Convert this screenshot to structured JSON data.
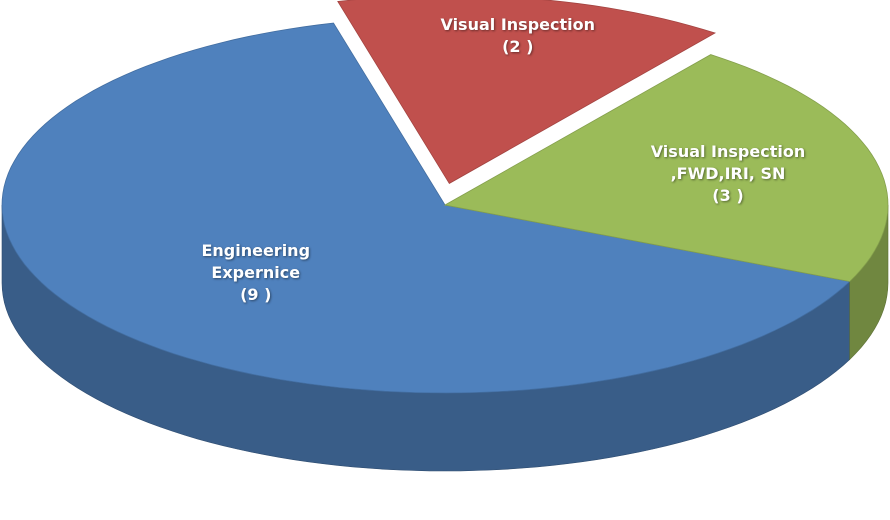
{
  "chart_data": {
    "type": "pie",
    "categories": [
      "Engineering Expernice",
      "Visual Inspection",
      "Visual Inspection ,FWD,IRI, SN"
    ],
    "values": [
      9,
      2,
      3
    ],
    "value_labels": [
      "(9 )",
      "(2 )",
      "(3 )"
    ],
    "colors": [
      "#4f81bd",
      "#c0504d",
      "#9bbb59"
    ]
  }
}
